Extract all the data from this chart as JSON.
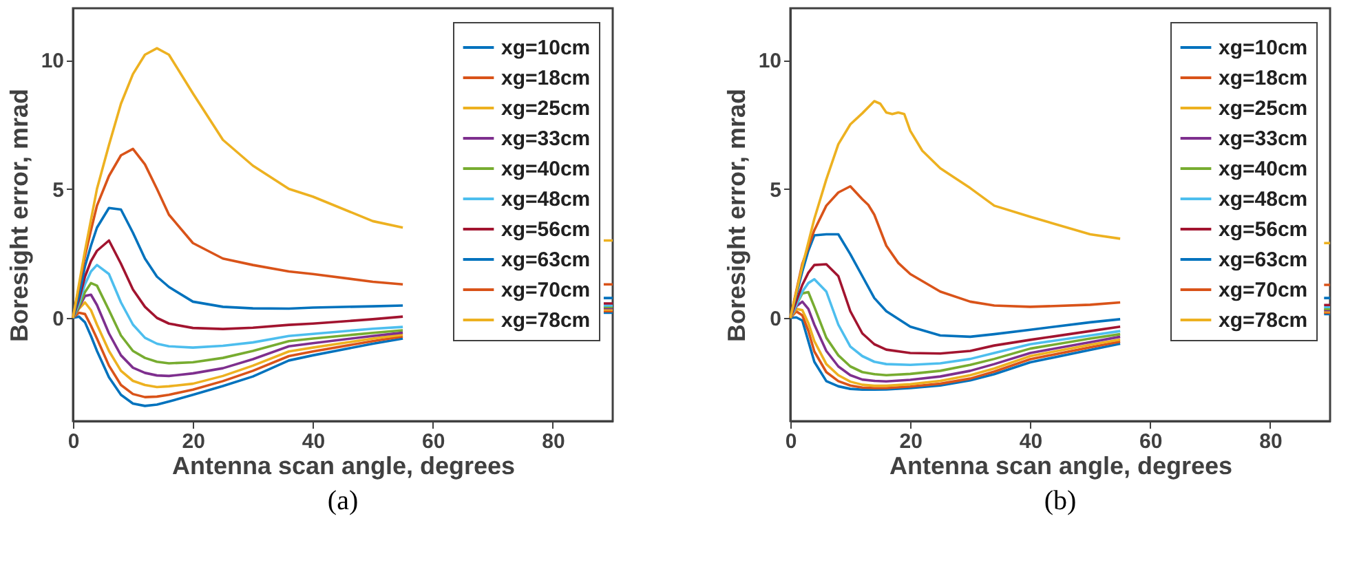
{
  "chart_data": [
    {
      "type": "line",
      "xlabel": "Antenna scan angle, degrees",
      "ylabel": "Boresight error, mrad",
      "annotations": [
        "(a)"
      ],
      "xlim": [
        0,
        90
      ],
      "ylim": [
        -4,
        12
      ],
      "xticks": [
        0,
        20,
        40,
        60,
        80
      ],
      "yticks": [
        0,
        5,
        10
      ],
      "grid": false,
      "legend": "top right",
      "x": [
        0,
        1,
        2,
        3,
        4,
        6,
        8,
        10,
        12,
        14,
        16,
        20,
        25,
        30,
        36,
        40,
        50,
        55,
        60,
        70,
        80,
        88.5,
        90
      ],
      "series": [
        {
          "name": "xg=10cm",
          "color": "#0072bd",
          "values": [
            0,
            0.05,
            -0.17,
            -0.7,
            -1.28,
            -2.3,
            -2.98,
            -3.32,
            -3.41,
            -3.36,
            -3.24,
            -2.98,
            -2.64,
            -2.27,
            -1.65,
            -1.45,
            -1.0,
            -0.8,
            null,
            null,
            null,
            0.2,
            0.2
          ]
        },
        {
          "name": "xg=18cm",
          "color": "#d95319",
          "values": [
            0,
            0.2,
            0.15,
            -0.3,
            -0.8,
            -1.85,
            -2.6,
            -2.95,
            -3.07,
            -3.05,
            -2.98,
            -2.78,
            -2.45,
            -2.05,
            -1.48,
            -1.3,
            -0.9,
            -0.72,
            null,
            null,
            null,
            0.26,
            0.26
          ]
        },
        {
          "name": "xg=25cm",
          "color": "#edb120",
          "values": [
            0,
            0.35,
            0.6,
            0.3,
            -0.26,
            -1.28,
            -2.05,
            -2.44,
            -2.6,
            -2.68,
            -2.65,
            -2.55,
            -2.25,
            -1.85,
            -1.3,
            -1.15,
            -0.8,
            -0.65,
            null,
            null,
            null,
            0.32,
            0.32
          ]
        },
        {
          "name": "xg=33cm",
          "color": "#7e2f8e",
          "values": [
            0,
            0.4,
            0.85,
            0.9,
            0.5,
            -0.6,
            -1.45,
            -1.93,
            -2.13,
            -2.23,
            -2.25,
            -2.15,
            -1.95,
            -1.6,
            -1.1,
            -0.98,
            -0.7,
            -0.57,
            null,
            null,
            null,
            0.38,
            0.38
          ]
        },
        {
          "name": "xg=40cm",
          "color": "#77ac30",
          "values": [
            0,
            0.45,
            1.0,
            1.35,
            1.25,
            0.3,
            -0.68,
            -1.28,
            -1.55,
            -1.7,
            -1.76,
            -1.72,
            -1.55,
            -1.28,
            -0.9,
            -0.8,
            -0.58,
            -0.48,
            null,
            null,
            null,
            0.43,
            0.43
          ]
        },
        {
          "name": "xg=48cm",
          "color": "#4dbeee",
          "values": [
            0,
            0.55,
            1.3,
            1.8,
            2.05,
            1.7,
            0.6,
            -0.26,
            -0.77,
            -1.0,
            -1.1,
            -1.15,
            -1.08,
            -0.95,
            -0.7,
            -0.62,
            -0.42,
            -0.35,
            null,
            null,
            null,
            0.48,
            0.48
          ]
        },
        {
          "name": "xg=56cm",
          "color": "#a2142f",
          "values": [
            0,
            0.7,
            1.6,
            2.2,
            2.6,
            3.0,
            2.1,
            1.1,
            0.43,
            0.0,
            -0.22,
            -0.39,
            -0.43,
            -0.38,
            -0.27,
            -0.22,
            -0.05,
            0.05,
            null,
            null,
            null,
            0.56,
            0.56
          ]
        },
        {
          "name": "xg=63cm",
          "color": "#0072bd",
          "values": [
            0,
            0.85,
            2.0,
            2.8,
            3.5,
            4.26,
            4.2,
            3.3,
            2.3,
            1.6,
            1.2,
            0.63,
            0.43,
            0.37,
            0.36,
            0.4,
            0.45,
            0.48,
            null,
            null,
            null,
            0.77,
            0.77
          ]
        },
        {
          "name": "xg=70cm",
          "color": "#d95319",
          "values": [
            0,
            1.2,
            2.4,
            3.4,
            4.35,
            5.5,
            6.3,
            6.55,
            5.95,
            5.0,
            4.0,
            2.9,
            2.3,
            2.05,
            1.8,
            1.7,
            1.4,
            1.3,
            null,
            null,
            null,
            1.3,
            1.3
          ]
        },
        {
          "name": "xg=78cm",
          "color": "#edb120",
          "values": [
            0,
            1.3,
            2.6,
            3.8,
            5.0,
            6.7,
            8.3,
            9.45,
            10.2,
            10.45,
            10.2,
            8.7,
            6.9,
            5.9,
            5.0,
            4.7,
            3.75,
            3.5,
            null,
            null,
            null,
            3.0,
            3.0
          ]
        }
      ]
    },
    {
      "type": "line",
      "xlabel": "Antenna scan angle, degrees",
      "ylabel": "Boresight error, mrad",
      "annotations": [
        "(b)"
      ],
      "xlim": [
        0,
        90
      ],
      "ylim": [
        -4,
        12
      ],
      "xticks": [
        0,
        20,
        40,
        60,
        80
      ],
      "yticks": [
        0,
        5,
        10
      ],
      "grid": false,
      "legend": "top right",
      "x": [
        0,
        1,
        2,
        3,
        4,
        6,
        8,
        10,
        12,
        14,
        16,
        20,
        25,
        30,
        34,
        40,
        50,
        55,
        60,
        70,
        80,
        89,
        90
      ],
      "series": [
        {
          "name": "xg=10cm",
          "color": "#0072bd",
          "values": [
            0,
            0.02,
            -0.1,
            -0.9,
            -1.7,
            -2.45,
            -2.65,
            -2.75,
            -2.78,
            -2.78,
            -2.77,
            -2.72,
            -2.62,
            -2.42,
            -2.18,
            -1.72,
            -1.24,
            -1.0,
            null,
            null,
            null,
            0.15,
            0.15
          ]
        },
        {
          "name": "xg=18cm",
          "color": "#d95319",
          "values": [
            0,
            0.25,
            0.1,
            -0.5,
            -1.3,
            -2.1,
            -2.45,
            -2.62,
            -2.7,
            -2.72,
            -2.72,
            -2.66,
            -2.55,
            -2.35,
            -2.08,
            -1.6,
            -1.14,
            -0.92,
            null,
            null,
            null,
            0.2,
            0.2
          ]
        },
        {
          "name": "xg=25cm",
          "color": "#edb120",
          "values": [
            0,
            0.35,
            0.3,
            -0.2,
            -0.9,
            -1.79,
            -2.22,
            -2.47,
            -2.59,
            -2.63,
            -2.63,
            -2.57,
            -2.44,
            -2.22,
            -1.96,
            -1.48,
            -1.04,
            -0.84,
            null,
            null,
            null,
            0.25,
            0.25
          ]
        },
        {
          "name": "xg=33cm",
          "color": "#7e2f8e",
          "values": [
            0,
            0.45,
            0.63,
            0.35,
            -0.26,
            -1.28,
            -1.88,
            -2.22,
            -2.39,
            -2.44,
            -2.46,
            -2.4,
            -2.27,
            -2.05,
            -1.79,
            -1.36,
            -0.94,
            -0.73,
            null,
            null,
            null,
            0.3,
            0.3
          ]
        },
        {
          "name": "xg=40cm",
          "color": "#77ac30",
          "values": [
            0,
            0.5,
            0.95,
            1.0,
            0.43,
            -0.77,
            -1.45,
            -1.88,
            -2.1,
            -2.18,
            -2.22,
            -2.17,
            -2.05,
            -1.82,
            -1.59,
            -1.19,
            -0.8,
            -0.63,
            null,
            null,
            null,
            0.35,
            0.35
          ]
        },
        {
          "name": "xg=48cm",
          "color": "#4dbeee",
          "values": [
            0,
            0.5,
            1.02,
            1.35,
            1.5,
            1.02,
            -0.26,
            -1.11,
            -1.48,
            -1.7,
            -1.79,
            -1.82,
            -1.76,
            -1.59,
            -1.36,
            -1.02,
            -0.68,
            -0.51,
            null,
            null,
            null,
            0.42,
            0.42
          ]
        },
        {
          "name": "xg=56cm",
          "color": "#a2142f",
          "values": [
            0,
            0.65,
            1.28,
            1.75,
            2.05,
            2.08,
            1.62,
            0.26,
            -0.6,
            -1.02,
            -1.23,
            -1.36,
            -1.38,
            -1.28,
            -1.07,
            -0.85,
            -0.51,
            -0.34,
            null,
            null,
            null,
            0.5,
            0.5
          ]
        },
        {
          "name": "xg=63cm",
          "color": "#0072bd",
          "values": [
            0,
            0.9,
            1.8,
            2.6,
            3.2,
            3.24,
            3.24,
            2.47,
            1.62,
            0.77,
            0.26,
            -0.34,
            -0.68,
            -0.73,
            -0.63,
            -0.46,
            -0.17,
            -0.05,
            null,
            null,
            null,
            0.77,
            0.77
          ]
        },
        {
          "name": "xg=70cm",
          "color": "#d95319",
          "x": [
            0,
            2,
            4,
            6,
            8,
            10,
            12,
            13,
            14,
            16,
            18,
            20,
            25,
            30,
            34,
            40,
            50,
            55,
            60,
            70,
            80,
            89,
            90
          ],
          "values": [
            0,
            2.1,
            3.4,
            4.35,
            4.86,
            5.1,
            4.6,
            4.38,
            4.0,
            2.8,
            2.13,
            1.7,
            1.02,
            0.63,
            0.48,
            0.43,
            0.51,
            0.6,
            null,
            null,
            null,
            1.28,
            1.28
          ]
        },
        {
          "name": "xg=78cm",
          "color": "#edb120",
          "x": [
            0,
            2,
            4,
            6,
            8,
            10,
            12,
            14,
            15,
            16,
            17,
            18,
            19,
            20,
            22,
            25,
            30,
            34,
            40,
            50,
            55,
            60,
            70,
            80,
            89,
            90
          ],
          "values": [
            0,
            2.0,
            3.84,
            5.37,
            6.73,
            7.5,
            7.93,
            8.4,
            8.3,
            7.96,
            7.9,
            7.96,
            7.9,
            7.25,
            6.48,
            5.8,
            5.03,
            4.35,
            3.92,
            3.24,
            3.07,
            null,
            null,
            null,
            2.9,
            2.9
          ]
        }
      ]
    }
  ]
}
